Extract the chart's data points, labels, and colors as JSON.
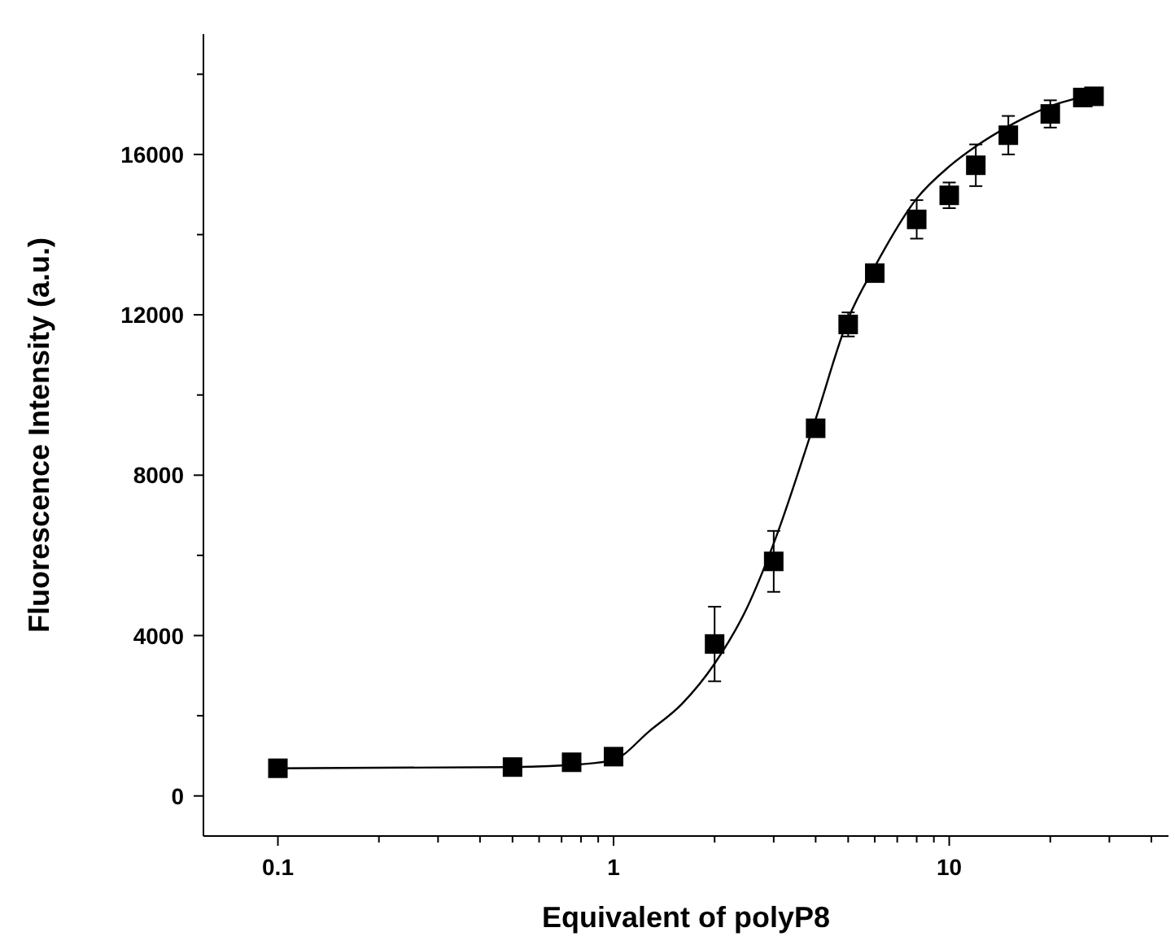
{
  "chart_data": {
    "type": "scatter",
    "xlabel": "Equivalent of polyP8",
    "ylabel": "Fluorescence Intensity (a.u.)",
    "log": "x",
    "grid": false,
    "xlim": [
      0.06,
      45
    ],
    "xticks": [
      0.1,
      {
        "value": 0.2,
        "label": null
      },
      {
        "value": 0.3,
        "label": null
      },
      {
        "value": 0.4,
        "label": null
      },
      {
        "value": 0.5,
        "label": null
      },
      {
        "value": 0.6,
        "label": null
      },
      {
        "value": 0.7,
        "label": null
      },
      {
        "value": 0.8,
        "label": null
      },
      {
        "value": 0.9,
        "label": null
      },
      1,
      {
        "value": 2,
        "label": null
      },
      {
        "value": 3,
        "label": null
      },
      {
        "value": 4,
        "label": null
      },
      {
        "value": 5,
        "label": null
      },
      {
        "value": 6,
        "label": null
      },
      {
        "value": 7,
        "label": null
      },
      {
        "value": 8,
        "label": null
      },
      {
        "value": 9,
        "label": null
      },
      10,
      {
        "value": 20,
        "label": null
      },
      {
        "value": 30,
        "label": null
      },
      {
        "value": 40,
        "label": null
      }
    ],
    "ylim": [
      -1000,
      19000
    ],
    "yticks": [
      0,
      {
        "value": 2000,
        "label": null
      },
      4000,
      {
        "value": 6000,
        "label": null
      },
      8000,
      {
        "value": 10000,
        "label": null
      },
      12000,
      {
        "value": 14000,
        "label": null
      },
      16000,
      {
        "value": 18000,
        "label": null
      }
    ],
    "series": [
      {
        "marker": "square",
        "color": "#000000",
        "x": [
          0.1,
          0.5,
          0.75,
          1,
          2,
          3,
          4,
          5,
          6,
          8,
          10,
          12,
          15,
          20,
          25,
          27
        ],
        "values": [
          690,
          720,
          840,
          980,
          3790,
          5850,
          9170,
          11760,
          13040,
          14380,
          14980,
          15730,
          16480,
          17010,
          17420,
          17450
        ],
        "errors": [
          null,
          null,
          null,
          null,
          930,
          760,
          null,
          300,
          null,
          480,
          320,
          520,
          480,
          340,
          null,
          null
        ]
      },
      {
        "type": "line",
        "marker": "none",
        "color": "#000000",
        "x": [
          0.1,
          0.5,
          0.8,
          1,
          1.28,
          1.6,
          2,
          2.5,
          3,
          4,
          5,
          6,
          8,
          10,
          12,
          15,
          20,
          27
        ],
        "values": [
          690,
          720,
          790,
          900,
          1620,
          2300,
          3300,
          4700,
          6300,
          9400,
          11900,
          13200,
          14900,
          15700,
          16200,
          16700,
          17200,
          17500
        ]
      }
    ]
  }
}
